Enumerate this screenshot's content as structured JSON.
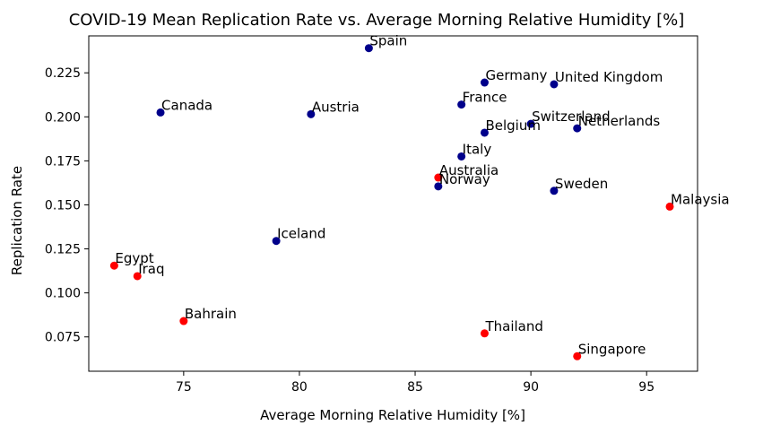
{
  "chart_data": {
    "type": "scatter",
    "title": "COVID-19 Mean Replication Rate vs. Average Morning Relative Humidity [%]",
    "xlabel": "Average Morning Relative Humidity [%]",
    "ylabel": "Replication Rate",
    "xlim": [
      70.9,
      97.2
    ],
    "ylim": [
      0.0555,
      0.246
    ],
    "xticks": [
      {
        "value": 75,
        "label": "75"
      },
      {
        "value": 80,
        "label": "80"
      },
      {
        "value": 85,
        "label": "85"
      },
      {
        "value": 90,
        "label": "90"
      },
      {
        "value": 95,
        "label": "95"
      }
    ],
    "yticks": [
      {
        "value": 0.075,
        "label": "0.075"
      },
      {
        "value": 0.1,
        "label": "0.100"
      },
      {
        "value": 0.125,
        "label": "0.125"
      },
      {
        "value": 0.15,
        "label": "0.150"
      },
      {
        "value": 0.175,
        "label": "0.175"
      },
      {
        "value": 0.2,
        "label": "0.200"
      },
      {
        "value": 0.225,
        "label": "0.225"
      }
    ],
    "grid": false,
    "colors": {
      "navy": "#00008b",
      "red": "#ff0000"
    },
    "points": [
      {
        "label": "Spain",
        "x": 83.0,
        "y": 0.239,
        "color": "navy"
      },
      {
        "label": "Germany",
        "x": 88.0,
        "y": 0.2195,
        "color": "navy"
      },
      {
        "label": "United Kingdom",
        "x": 91.0,
        "y": 0.2185,
        "color": "navy"
      },
      {
        "label": "France",
        "x": 87.0,
        "y": 0.207,
        "color": "navy"
      },
      {
        "label": "Canada",
        "x": 74.0,
        "y": 0.2025,
        "color": "navy"
      },
      {
        "label": "Austria",
        "x": 80.5,
        "y": 0.2015,
        "color": "navy"
      },
      {
        "label": "Switzerland",
        "x": 90.0,
        "y": 0.196,
        "color": "navy"
      },
      {
        "label": "Netherlands",
        "x": 92.0,
        "y": 0.1935,
        "color": "navy"
      },
      {
        "label": "Belgium",
        "x": 88.0,
        "y": 0.191,
        "color": "navy"
      },
      {
        "label": "Italy",
        "x": 87.0,
        "y": 0.1775,
        "color": "navy"
      },
      {
        "label": "Australia",
        "x": 86.0,
        "y": 0.1655,
        "color": "red"
      },
      {
        "label": "Norway",
        "x": 86.0,
        "y": 0.1605,
        "color": "navy"
      },
      {
        "label": "Sweden",
        "x": 91.0,
        "y": 0.158,
        "color": "navy"
      },
      {
        "label": "Malaysia",
        "x": 96.0,
        "y": 0.149,
        "color": "red"
      },
      {
        "label": "Iceland",
        "x": 79.0,
        "y": 0.1295,
        "color": "navy"
      },
      {
        "label": "Egypt",
        "x": 72.0,
        "y": 0.1155,
        "color": "red"
      },
      {
        "label": "Iraq",
        "x": 73.0,
        "y": 0.1095,
        "color": "red"
      },
      {
        "label": "Bahrain",
        "x": 75.0,
        "y": 0.084,
        "color": "red"
      },
      {
        "label": "Thailand",
        "x": 88.0,
        "y": 0.077,
        "color": "red"
      },
      {
        "label": "Singapore",
        "x": 92.0,
        "y": 0.064,
        "color": "red"
      }
    ]
  }
}
